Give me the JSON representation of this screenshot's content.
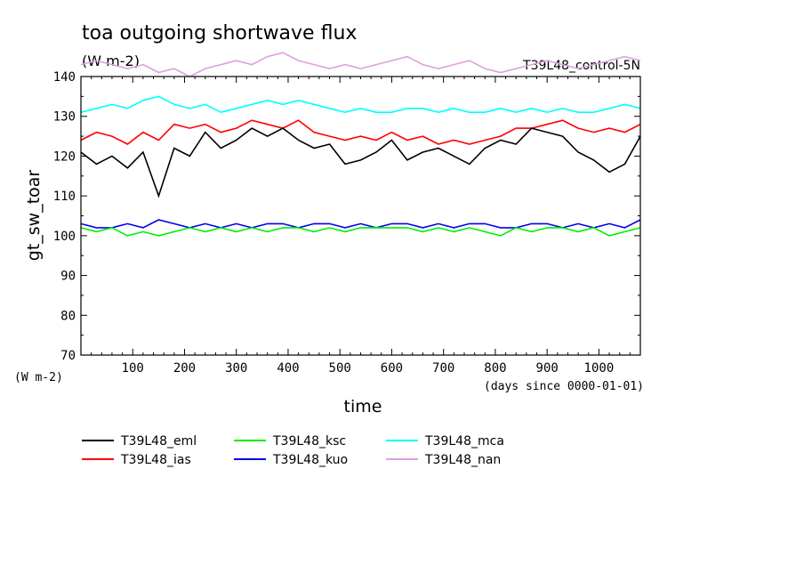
{
  "chart_data": {
    "type": "line",
    "title": "toa outgoing shortwave flux",
    "units": "(W m-2)",
    "experiment": "T39L48_control-5N",
    "ylabel": "gt_sw_toar",
    "ylabel_units": "(W m-2)",
    "xlabel": "time",
    "xlabel_units": "(days since 0000-01-01)",
    "xlim": [
      0,
      1080
    ],
    "ylim": [
      70,
      140
    ],
    "x_ticks": [
      100,
      200,
      300,
      400,
      500,
      600,
      700,
      800,
      900,
      1000
    ],
    "y_ticks": [
      70,
      80,
      90,
      100,
      110,
      120,
      130,
      140
    ],
    "grid": false,
    "legend_position": "bottom",
    "series": [
      {
        "name": "T39L48_eml",
        "color": "#000000",
        "x": [
          0,
          30,
          60,
          90,
          120,
          150,
          180,
          210,
          240,
          270,
          300,
          330,
          360,
          390,
          420,
          450,
          480,
          510,
          540,
          570,
          600,
          630,
          660,
          690,
          720,
          750,
          780,
          810,
          840,
          870,
          900,
          930,
          960,
          990,
          1020,
          1050,
          1080
        ],
        "values": [
          121,
          118,
          120,
          117,
          121,
          110,
          122,
          120,
          126,
          122,
          124,
          127,
          125,
          127,
          124,
          122,
          123,
          118,
          119,
          121,
          124,
          119,
          121,
          122,
          120,
          118,
          122,
          124,
          123,
          127,
          126,
          125,
          121,
          119,
          116,
          118,
          125
        ]
      },
      {
        "name": "T39L48_ias",
        "color": "#ff0000",
        "x": [
          0,
          30,
          60,
          90,
          120,
          150,
          180,
          210,
          240,
          270,
          300,
          330,
          360,
          390,
          420,
          450,
          480,
          510,
          540,
          570,
          600,
          630,
          660,
          690,
          720,
          750,
          780,
          810,
          840,
          870,
          900,
          930,
          960,
          990,
          1020,
          1050,
          1080
        ],
        "values": [
          124,
          126,
          125,
          123,
          126,
          124,
          128,
          127,
          128,
          126,
          127,
          129,
          128,
          127,
          129,
          126,
          125,
          124,
          125,
          124,
          126,
          124,
          125,
          123,
          124,
          123,
          124,
          125,
          127,
          127,
          128,
          129,
          127,
          126,
          127,
          126,
          128
        ]
      },
      {
        "name": "T39L48_ksc",
        "color": "#00ee00",
        "x": [
          0,
          30,
          60,
          90,
          120,
          150,
          180,
          210,
          240,
          270,
          300,
          330,
          360,
          390,
          420,
          450,
          480,
          510,
          540,
          570,
          600,
          630,
          660,
          690,
          720,
          750,
          780,
          810,
          840,
          870,
          900,
          930,
          960,
          990,
          1020,
          1050,
          1080
        ],
        "values": [
          102,
          101,
          102,
          100,
          101,
          100,
          101,
          102,
          101,
          102,
          101,
          102,
          101,
          102,
          102,
          101,
          102,
          101,
          102,
          102,
          102,
          102,
          101,
          102,
          101,
          102,
          101,
          100,
          102,
          101,
          102,
          102,
          101,
          102,
          100,
          101,
          102
        ]
      },
      {
        "name": "T39L48_kuo",
        "color": "#0000ee",
        "x": [
          0,
          30,
          60,
          90,
          120,
          150,
          180,
          210,
          240,
          270,
          300,
          330,
          360,
          390,
          420,
          450,
          480,
          510,
          540,
          570,
          600,
          630,
          660,
          690,
          720,
          750,
          780,
          810,
          840,
          870,
          900,
          930,
          960,
          990,
          1020,
          1050,
          1080
        ],
        "values": [
          103,
          102,
          102,
          103,
          102,
          104,
          103,
          102,
          103,
          102,
          103,
          102,
          103,
          103,
          102,
          103,
          103,
          102,
          103,
          102,
          103,
          103,
          102,
          103,
          102,
          103,
          103,
          102,
          102,
          103,
          103,
          102,
          103,
          102,
          103,
          102,
          104
        ]
      },
      {
        "name": "T39L48_mca",
        "color": "#00ffff",
        "x": [
          0,
          30,
          60,
          90,
          120,
          150,
          180,
          210,
          240,
          270,
          300,
          330,
          360,
          390,
          420,
          450,
          480,
          510,
          540,
          570,
          600,
          630,
          660,
          690,
          720,
          750,
          780,
          810,
          840,
          870,
          900,
          930,
          960,
          990,
          1020,
          1050,
          1080
        ],
        "values": [
          131,
          132,
          133,
          132,
          134,
          135,
          133,
          132,
          133,
          131,
          132,
          133,
          134,
          133,
          134,
          133,
          132,
          131,
          132,
          131,
          131,
          132,
          132,
          131,
          132,
          131,
          131,
          132,
          131,
          132,
          131,
          132,
          131,
          131,
          132,
          133,
          132
        ]
      },
      {
        "name": "T39L48_nan",
        "color": "#dda0dd",
        "x": [
          0,
          30,
          60,
          90,
          120,
          150,
          180,
          210,
          240,
          270,
          300,
          330,
          360,
          390,
          420,
          450,
          480,
          510,
          540,
          570,
          600,
          630,
          660,
          690,
          720,
          750,
          780,
          810,
          840,
          870,
          900,
          930,
          960,
          990,
          1020,
          1050,
          1080
        ],
        "values": [
          143,
          144,
          143,
          142,
          143,
          141,
          142,
          140,
          142,
          143,
          144,
          143,
          145,
          146,
          144,
          143,
          142,
          143,
          142,
          143,
          144,
          145,
          143,
          142,
          143,
          144,
          142,
          141,
          142,
          143,
          144,
          143,
          142,
          143,
          144,
          145,
          144
        ]
      }
    ]
  }
}
